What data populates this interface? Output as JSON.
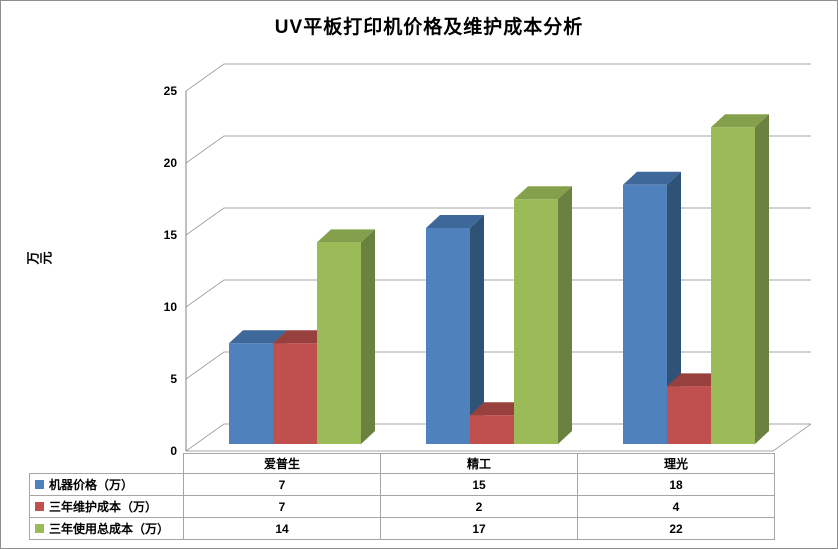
{
  "title": "UV平板打印机价格及维护成本分析",
  "y_axis": {
    "label": "万元",
    "ticks": [
      0,
      5,
      10,
      15,
      20,
      25
    ]
  },
  "chart_data": {
    "type": "bar",
    "projection": "3d",
    "title": "UV平板打印机价格及维护成本分析",
    "categories": [
      "爱普生",
      "精工",
      "理光"
    ],
    "series": [
      {
        "name": "机器价格（万）",
        "values": [
          7,
          15,
          18
        ],
        "color": "#4F81BD",
        "color_top": "#3D6899",
        "color_side": "#2F5377"
      },
      {
        "name": "三年维护成本（万）",
        "values": [
          7,
          2,
          4
        ],
        "color": "#C0504D",
        "color_top": "#98403D",
        "color_side": "#7D3532"
      },
      {
        "name": "三年使用总成本（万）",
        "values": [
          14,
          17,
          22
        ],
        "color": "#9BBB59",
        "color_top": "#85A04C",
        "color_side": "#6A8140"
      }
    ],
    "xlabel": "",
    "ylabel": "万元",
    "ylim": [
      0,
      25
    ],
    "ytick_step": 5,
    "grid": true,
    "legend_position": "table-left"
  },
  "colors": {
    "gridline": "#A6A6A6",
    "axis_line": "#808080",
    "table_border": "#A6A6A6",
    "background": "#FFFFFF",
    "text": "#000000"
  }
}
